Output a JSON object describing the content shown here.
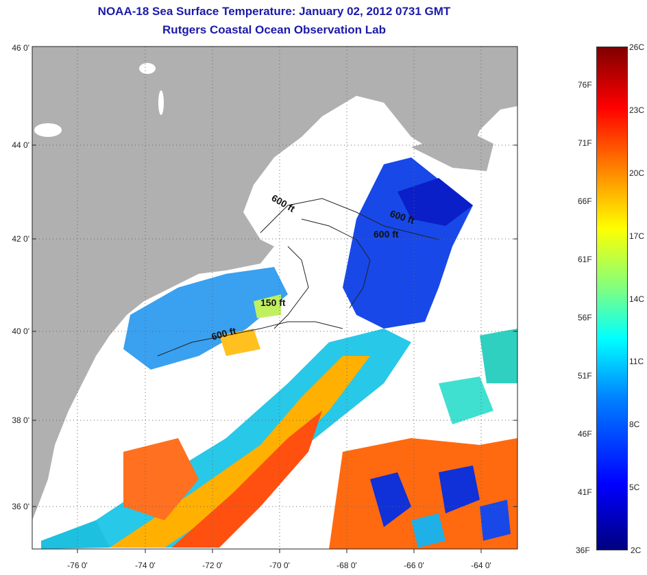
{
  "title": {
    "line1": "NOAA-18 Sea Surface Temperature:  January 02, 2012 0731 GMT",
    "line2": "Rutgers Coastal Ocean Observation Lab"
  },
  "map": {
    "lat_labels": [
      "46 0'",
      "44 0'",
      "42 0'",
      "40 0'",
      "38 0'",
      "36 0'"
    ],
    "lon_labels": [
      "-76 0'",
      "-74 0'",
      "-72 0'",
      "-70 0'",
      "-68 0'",
      "-66 0'",
      "-64 0'"
    ],
    "contour_labels": [
      "600 ft",
      "600 ft",
      "600 ft",
      "150 ft",
      "600 ft"
    ],
    "colors": {
      "land": "#b0b0b0",
      "cloud": "#ffffff",
      "cold": "#1040e0",
      "mid": "#20d0e0",
      "warm": "#ff6010"
    }
  },
  "colorbar": {
    "fahrenheit": [
      "76F",
      "71F",
      "66F",
      "61F",
      "56F",
      "51F",
      "46F",
      "41F",
      "36F"
    ],
    "celsius": [
      "26C",
      "23C",
      "20C",
      "17C",
      "14C",
      "11C",
      "8C",
      "5C",
      "2C"
    ]
  }
}
